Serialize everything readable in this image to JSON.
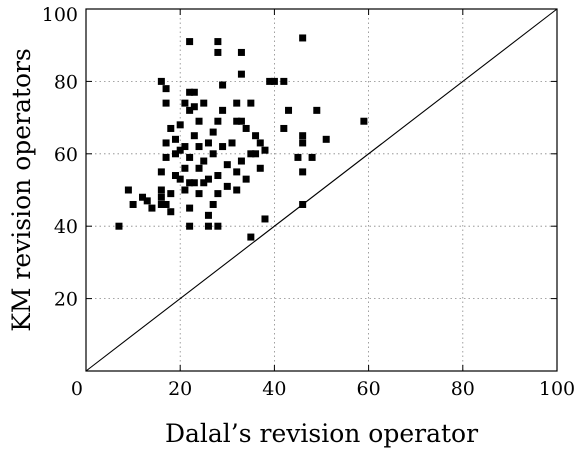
{
  "chart_data": {
    "type": "scatter",
    "xlabel": "Dalal’s revision operator",
    "ylabel": "KM revision operators",
    "xlim": [
      0,
      100
    ],
    "ylim": [
      0,
      100
    ],
    "x_ticks": [
      0,
      20,
      40,
      60,
      80,
      100
    ],
    "y_ticks": [
      20,
      40,
      60,
      80,
      100
    ],
    "x_tick_labels": [
      "0",
      "20",
      "40",
      "60",
      "80",
      "100"
    ],
    "y_tick_labels": [
      "20",
      "40",
      "60",
      "80",
      "100"
    ],
    "grid": true,
    "reference_line": {
      "from": [
        0,
        0
      ],
      "to": [
        100,
        100
      ]
    },
    "marker": "square",
    "marker_color": "#000000",
    "points": [
      {
        "x": 22,
        "y": 91
      },
      {
        "x": 28,
        "y": 91
      },
      {
        "x": 28,
        "y": 88
      },
      {
        "x": 33,
        "y": 88
      },
      {
        "x": 46,
        "y": 92
      },
      {
        "x": 33,
        "y": 82
      },
      {
        "x": 16,
        "y": 80
      },
      {
        "x": 40,
        "y": 80
      },
      {
        "x": 39,
        "y": 80
      },
      {
        "x": 42,
        "y": 80
      },
      {
        "x": 17,
        "y": 78
      },
      {
        "x": 29,
        "y": 79
      },
      {
        "x": 22,
        "y": 77
      },
      {
        "x": 23,
        "y": 77
      },
      {
        "x": 17,
        "y": 74
      },
      {
        "x": 21,
        "y": 74
      },
      {
        "x": 25,
        "y": 74
      },
      {
        "x": 32,
        "y": 74
      },
      {
        "x": 35,
        "y": 74
      },
      {
        "x": 22,
        "y": 72
      },
      {
        "x": 23,
        "y": 73
      },
      {
        "x": 29,
        "y": 72
      },
      {
        "x": 43,
        "y": 72
      },
      {
        "x": 49,
        "y": 72
      },
      {
        "x": 24,
        "y": 69
      },
      {
        "x": 28,
        "y": 69
      },
      {
        "x": 32,
        "y": 69
      },
      {
        "x": 33,
        "y": 69
      },
      {
        "x": 59,
        "y": 69
      },
      {
        "x": 18,
        "y": 67
      },
      {
        "x": 20,
        "y": 68
      },
      {
        "x": 27,
        "y": 66
      },
      {
        "x": 34,
        "y": 67
      },
      {
        "x": 42,
        "y": 67
      },
      {
        "x": 19,
        "y": 64
      },
      {
        "x": 23,
        "y": 65
      },
      {
        "x": 26,
        "y": 63
      },
      {
        "x": 31,
        "y": 63
      },
      {
        "x": 36,
        "y": 65
      },
      {
        "x": 46,
        "y": 65
      },
      {
        "x": 17,
        "y": 63
      },
      {
        "x": 21,
        "y": 62
      },
      {
        "x": 24,
        "y": 62
      },
      {
        "x": 29,
        "y": 62
      },
      {
        "x": 37,
        "y": 63
      },
      {
        "x": 46,
        "y": 63
      },
      {
        "x": 51,
        "y": 64
      },
      {
        "x": 19,
        "y": 60
      },
      {
        "x": 20,
        "y": 61
      },
      {
        "x": 27,
        "y": 60
      },
      {
        "x": 35,
        "y": 60
      },
      {
        "x": 36,
        "y": 60
      },
      {
        "x": 38,
        "y": 61
      },
      {
        "x": 45,
        "y": 59
      },
      {
        "x": 48,
        "y": 59
      },
      {
        "x": 17,
        "y": 59
      },
      {
        "x": 22,
        "y": 59
      },
      {
        "x": 25,
        "y": 58
      },
      {
        "x": 30,
        "y": 57
      },
      {
        "x": 33,
        "y": 58
      },
      {
        "x": 21,
        "y": 56
      },
      {
        "x": 24,
        "y": 56
      },
      {
        "x": 32,
        "y": 55
      },
      {
        "x": 37,
        "y": 56
      },
      {
        "x": 46,
        "y": 55
      },
      {
        "x": 16,
        "y": 55
      },
      {
        "x": 19,
        "y": 54
      },
      {
        "x": 23,
        "y": 52
      },
      {
        "x": 26,
        "y": 53
      },
      {
        "x": 28,
        "y": 54
      },
      {
        "x": 34,
        "y": 53
      },
      {
        "x": 20,
        "y": 53
      },
      {
        "x": 22,
        "y": 52
      },
      {
        "x": 25,
        "y": 52
      },
      {
        "x": 30,
        "y": 51
      },
      {
        "x": 32,
        "y": 50
      },
      {
        "x": 9,
        "y": 50
      },
      {
        "x": 16,
        "y": 50
      },
      {
        "x": 18,
        "y": 49
      },
      {
        "x": 21,
        "y": 50
      },
      {
        "x": 24,
        "y": 49
      },
      {
        "x": 28,
        "y": 49
      },
      {
        "x": 16,
        "y": 48
      },
      {
        "x": 12,
        "y": 48
      },
      {
        "x": 13,
        "y": 47
      },
      {
        "x": 10,
        "y": 46
      },
      {
        "x": 16,
        "y": 46
      },
      {
        "x": 17,
        "y": 46
      },
      {
        "x": 14,
        "y": 45
      },
      {
        "x": 18,
        "y": 44
      },
      {
        "x": 22,
        "y": 45
      },
      {
        "x": 27,
        "y": 46
      },
      {
        "x": 46,
        "y": 46
      },
      {
        "x": 26,
        "y": 43
      },
      {
        "x": 38,
        "y": 42
      },
      {
        "x": 7,
        "y": 40
      },
      {
        "x": 22,
        "y": 40
      },
      {
        "x": 26,
        "y": 40
      },
      {
        "x": 28,
        "y": 40
      },
      {
        "x": 35,
        "y": 37
      }
    ]
  }
}
